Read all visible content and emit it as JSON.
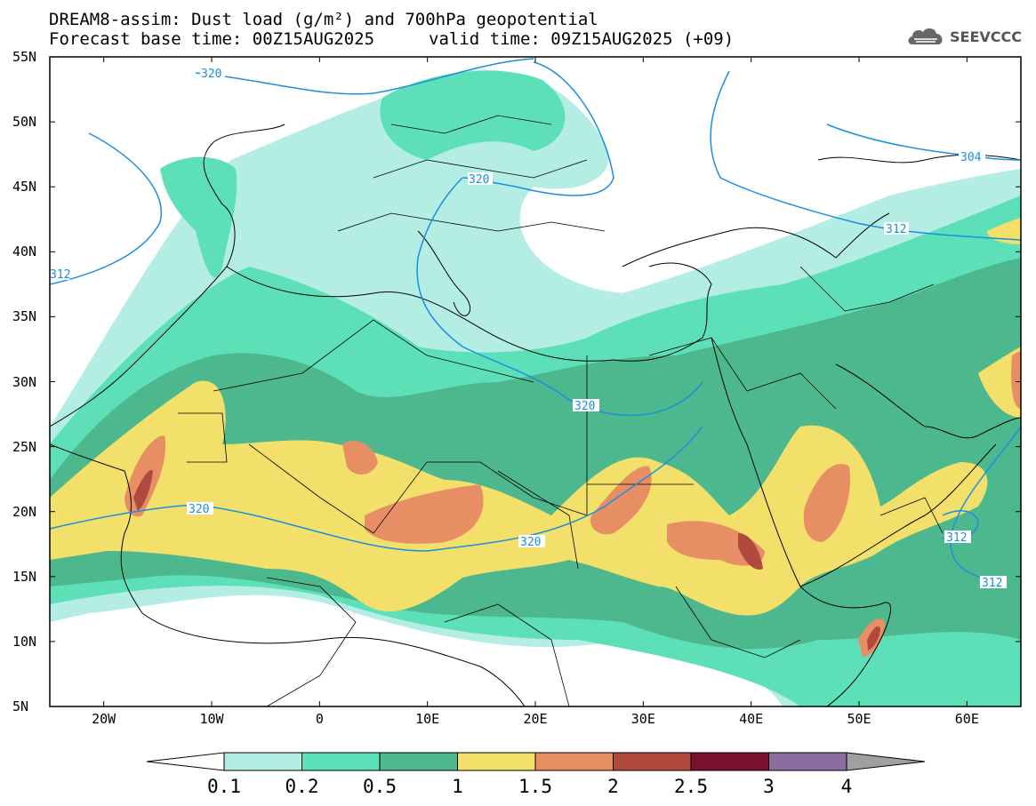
{
  "title": {
    "line1": "DREAM8-assim: Dust load (g/m²) and 700hPa geopotential",
    "line2": "Forecast base time: 00Z15AUG2025",
    "valid": "valid time: 09Z15AUG2025 (+09)"
  },
  "logo": {
    "text": "SEEVCCC",
    "icon": "cloud-icon"
  },
  "axes": {
    "lat_labels": [
      "55N",
      "50N",
      "45N",
      "40N",
      "35N",
      "30N",
      "25N",
      "20N",
      "15N",
      "10N",
      "5N"
    ],
    "lon_labels": [
      "20W",
      "10W",
      "0",
      "10E",
      "20E",
      "30E",
      "40E",
      "50E",
      "60E"
    ],
    "lon_range": [
      -25,
      65
    ],
    "lat_range": [
      5,
      55
    ]
  },
  "colorbar": {
    "labels": [
      "0.1",
      "0.2",
      "0.5",
      "1",
      "1.5",
      "2",
      "2.5",
      "3",
      "4"
    ],
    "colors": [
      "#b3ede4",
      "#5de0b8",
      "#4db88e",
      "#f2e06a",
      "#e88e64",
      "#b04a3e",
      "#7a1030",
      "#8a6ea0",
      "#a0a0a0"
    ]
  },
  "contours": {
    "color": "#1a8fe0",
    "labels": [
      "320",
      "320",
      "320",
      "320",
      "320",
      "312",
      "312",
      "312",
      "312",
      "304"
    ]
  }
}
